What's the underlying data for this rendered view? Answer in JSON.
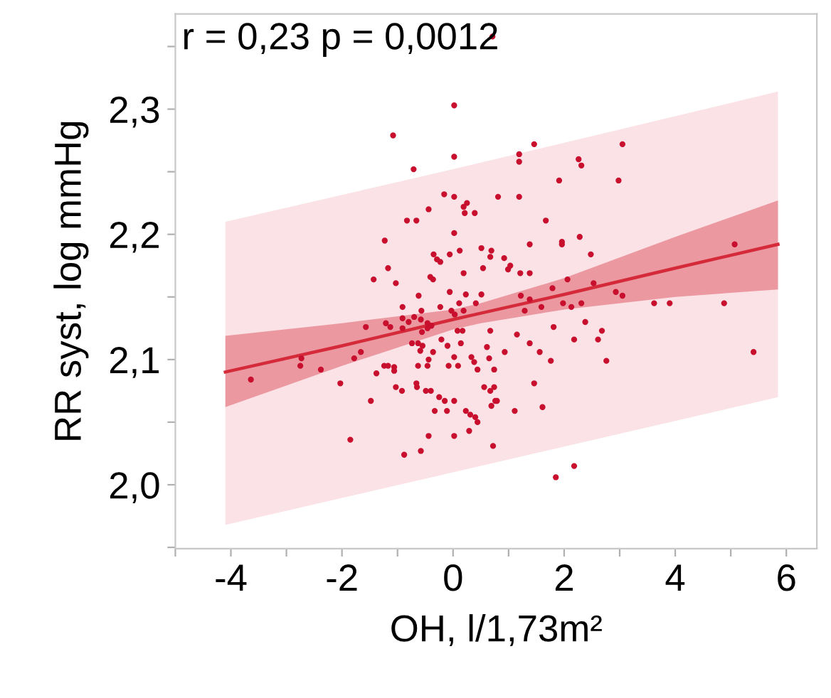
{
  "chart_data": {
    "type": "scatter",
    "xlabel": "OH, l/1,73m²",
    "ylabel": "RR syst, log mmHg",
    "annotations": [
      "r = 0,23 p = 0,0012"
    ],
    "xlim": [
      -5,
      6.55
    ],
    "ylim": [
      1.949,
      2.376
    ],
    "xticks": [
      {
        "value": -5,
        "label": null
      },
      -4,
      {
        "value": -3,
        "label": null
      },
      -2,
      {
        "value": -1,
        "label": null
      },
      0,
      {
        "value": 1,
        "label": null
      },
      2,
      {
        "value": 3,
        "label": null
      },
      4,
      {
        "value": 5,
        "label": null
      },
      6
    ],
    "yticks": [
      {
        "value": 1.95,
        "label": null
      },
      {
        "value": 2.0,
        "label": "2,0"
      },
      {
        "value": 2.05,
        "label": null
      },
      {
        "value": 2.1,
        "label": "2,1"
      },
      {
        "value": 2.15,
        "label": null
      },
      {
        "value": 2.2,
        "label": "2,2"
      },
      {
        "value": 2.25,
        "label": null
      },
      {
        "value": 2.3,
        "label": "2,3"
      },
      {
        "value": 2.35,
        "label": null
      }
    ],
    "grid": false,
    "legend": false,
    "marker": "circle",
    "series": [
      {
        "type": "line",
        "color": "#fbe2e6",
        "x": [
          -4.1,
          0,
          5.85
        ],
        "values": [
          null,
          null,
          null
        ],
        "lower": [
          1.968,
          2.01,
          2.07
        ],
        "upper": [
          2.21,
          2.252,
          2.314
        ]
      },
      {
        "type": "line",
        "color": "#d42a3a",
        "line_style": "solid",
        "marker": "none",
        "x": [
          -4.1,
          -2,
          0,
          0.5,
          2,
          4,
          5.85
        ],
        "values": [
          2.09,
          2.111,
          2.132,
          2.137,
          2.152,
          2.173,
          2.192
        ],
        "lower": [
          2.062,
          2.095,
          2.124,
          2.129,
          2.14,
          2.15,
          2.156
        ],
        "upper": [
          2.119,
          2.129,
          2.14,
          2.145,
          2.165,
          2.198,
          2.227
        ]
      },
      {
        "color": "#c8102e",
        "x": [
          0.02,
          -1.08,
          0.02,
          -0.71,
          -0.16,
          0.02,
          0.25,
          0.19,
          0.21,
          0.39,
          0.81,
          -0.44,
          -0.83,
          -0.66,
          0.02,
          -1.23,
          0.51,
          0.69,
          0.67,
          0.12,
          -0.06,
          -0.35,
          -0.29,
          -0.23,
          -1.17,
          0.54,
          0.19,
          -1.43,
          -0.41,
          -0.36,
          -1.03,
          -0.62,
          -0.06,
          0.23,
          0.51,
          0.11,
          0.41,
          -0.91,
          -0.23,
          -0.57,
          -0.03,
          0.19,
          0.03,
          -0.7,
          -0.91,
          -0.8,
          -0.58,
          -1.21,
          -1.13,
          -1.57,
          -0.46,
          -0.39,
          -0.46,
          -0.91,
          -0.56,
          0.08,
          0.17,
          0.67,
          -0.74,
          -0.63,
          -0.55,
          -0.59,
          -0.21,
          -0.1,
          0.14,
          0.61,
          -1.66,
          -1.78,
          -2.73,
          -2.75,
          -2.38,
          -3.64,
          -0.36,
          0.02,
          -0.44,
          0.33,
          0.38,
          0.65,
          -1.24,
          -1.06,
          -1.17,
          -1.06,
          -0.63,
          -0.46,
          -0.08,
          0.09,
          0.44,
          0.74,
          -1.38,
          -2.03,
          -0.66,
          -0.65,
          -1.03,
          -0.92,
          -0.49,
          -0.4,
          -0.25,
          -0.15,
          0.02,
          0.56,
          0.67,
          0.76,
          0.69,
          -1.48,
          -0.33,
          -0.11,
          0.23,
          0.31,
          0.4,
          0.44,
          -0.44,
          0.02,
          0.29,
          -1.85,
          0.72,
          -0.58,
          -0.88,
          1.46,
          3.05,
          1.19,
          1.19,
          2.26,
          2.31,
          1.91,
          2.98,
          1.19,
          1.67,
          0.92,
          1.38,
          1.96,
          1.96,
          2.28,
          2.48,
          5.07,
          1.03,
          0.99,
          1.21,
          1.38,
          2.06,
          1.79,
          2.53,
          1.22,
          2.93,
          3.05,
          1.38,
          1.59,
          1.98,
          2.13,
          2.31,
          3.62,
          3.9,
          4.88,
          1.29,
          1.15,
          1.81,
          2.38,
          2.68,
          2.18,
          2.61,
          1.38,
          0.93,
          1.56,
          1.76,
          2.76,
          5.41,
          1.46,
          0.74,
          0.79,
          1.11,
          1.61,
          2.18,
          1.85,
          0.71
        ],
        "values": [
          2.303,
          2.279,
          2.262,
          2.252,
          2.232,
          2.23,
          2.225,
          2.222,
          2.217,
          2.217,
          2.23,
          2.22,
          2.211,
          2.211,
          2.201,
          2.195,
          2.189,
          2.187,
          2.182,
          2.187,
          2.184,
          2.184,
          2.18,
          2.178,
          2.173,
          2.173,
          2.169,
          2.164,
          2.166,
          2.164,
          2.161,
          2.151,
          2.154,
          2.152,
          2.152,
          2.145,
          2.145,
          2.142,
          2.142,
          2.139,
          2.139,
          2.139,
          2.136,
          2.134,
          2.133,
          2.13,
          2.132,
          2.129,
          2.126,
          2.126,
          2.129,
          2.127,
          2.125,
          2.125,
          2.122,
          2.123,
          2.123,
          2.123,
          2.113,
          2.113,
          2.111,
          2.107,
          2.116,
          2.111,
          2.113,
          2.11,
          2.106,
          2.101,
          2.101,
          2.095,
          2.092,
          2.084,
          2.106,
          2.102,
          2.1,
          2.102,
          2.098,
          2.101,
          2.095,
          2.094,
          2.095,
          2.091,
          2.095,
          2.095,
          2.095,
          2.095,
          2.092,
          2.092,
          2.089,
          2.081,
          2.081,
          2.078,
          2.078,
          2.075,
          2.075,
          2.075,
          2.07,
          2.067,
          2.067,
          2.078,
          2.075,
          2.067,
          2.063,
          2.067,
          2.059,
          2.059,
          2.059,
          2.056,
          2.054,
          2.05,
          2.039,
          2.039,
          2.043,
          2.036,
          2.031,
          2.027,
          2.024,
          2.272,
          2.272,
          2.264,
          2.258,
          2.26,
          2.255,
          2.243,
          2.243,
          2.23,
          2.211,
          2.181,
          2.192,
          2.194,
          2.192,
          2.198,
          2.184,
          2.192,
          2.175,
          2.172,
          2.169,
          2.169,
          2.164,
          2.157,
          2.161,
          2.151,
          2.154,
          2.151,
          2.148,
          2.142,
          2.145,
          2.142,
          2.145,
          2.145,
          2.145,
          2.145,
          2.139,
          2.12,
          2.126,
          2.13,
          2.123,
          2.116,
          2.116,
          2.113,
          2.106,
          2.106,
          2.099,
          2.099,
          2.106,
          2.081,
          2.078,
          2.067,
          2.059,
          2.062,
          2.015,
          2.006,
          2.358
        ]
      }
    ]
  }
}
